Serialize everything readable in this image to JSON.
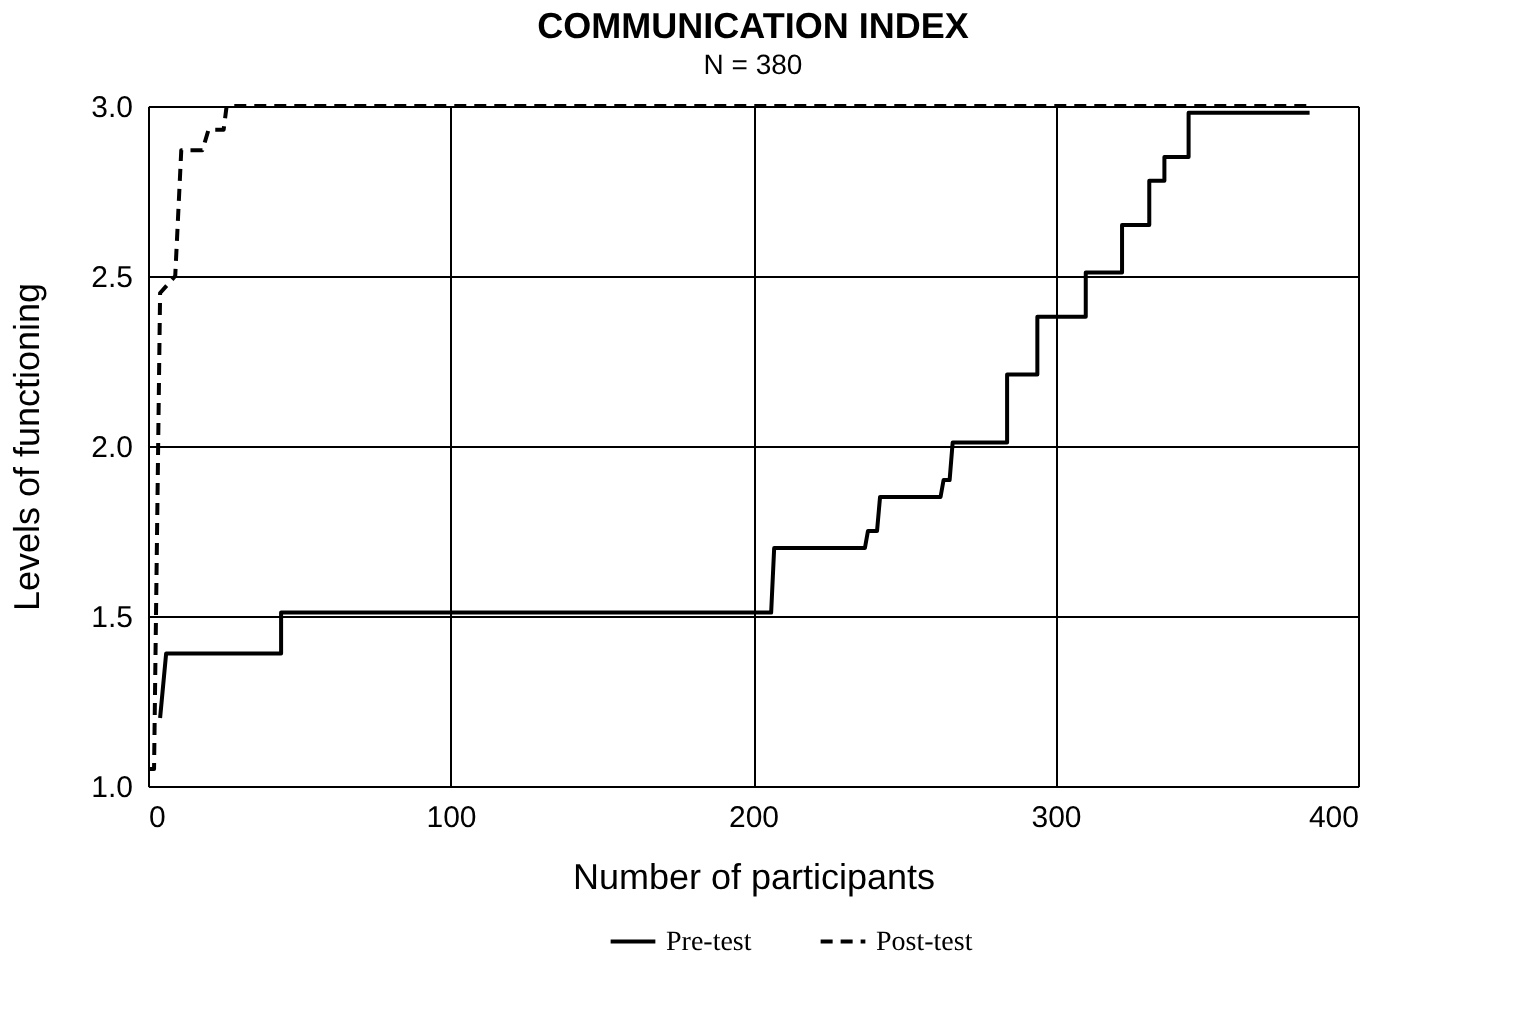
{
  "chart_data": {
    "type": "line",
    "title": "COMMUNICATION INDEX",
    "subtitle": "N = 380",
    "xlabel": "Number of participants",
    "ylabel": "Levels of functioning",
    "xlim": [
      0,
      400
    ],
    "xticks": [
      0,
      100,
      200,
      300,
      400
    ],
    "ylim": [
      1.0,
      3.0
    ],
    "yticks": [
      {
        "value": 1.0,
        "label": "1.0"
      },
      1.5,
      {
        "value": 2.0,
        "label": "2.0"
      },
      2.5,
      {
        "value": 3.0,
        "label": "3.0"
      }
    ],
    "grid": true,
    "legend": "bottom",
    "marker": "none",
    "series": [
      {
        "name": "Pre-test",
        "color": "#000000",
        "line_style": "solid",
        "x": [
          4,
          6,
          44,
          44,
          206,
          207,
          237,
          238,
          241,
          242,
          262,
          263,
          265,
          266,
          284,
          284,
          294,
          294,
          310,
          310,
          322,
          322,
          331,
          331,
          336,
          336,
          344,
          344,
          384
        ],
        "values": [
          1.2,
          1.39,
          1.39,
          1.51,
          1.51,
          1.7,
          1.7,
          1.75,
          1.75,
          1.85,
          1.85,
          1.9,
          1.9,
          2.01,
          2.01,
          2.21,
          2.21,
          2.38,
          2.38,
          2.51,
          2.51,
          2.65,
          2.65,
          2.78,
          2.78,
          2.85,
          2.85,
          2.98,
          2.98
        ]
      },
      {
        "name": "Post-test",
        "color": "#000000",
        "line_style": "dashed",
        "x": [
          0,
          2,
          4,
          9,
          11,
          18,
          20,
          25,
          26,
          384
        ],
        "values": [
          1.05,
          1.05,
          2.45,
          2.5,
          2.87,
          2.87,
          2.93,
          2.93,
          3.0,
          3.0
        ]
      }
    ]
  }
}
